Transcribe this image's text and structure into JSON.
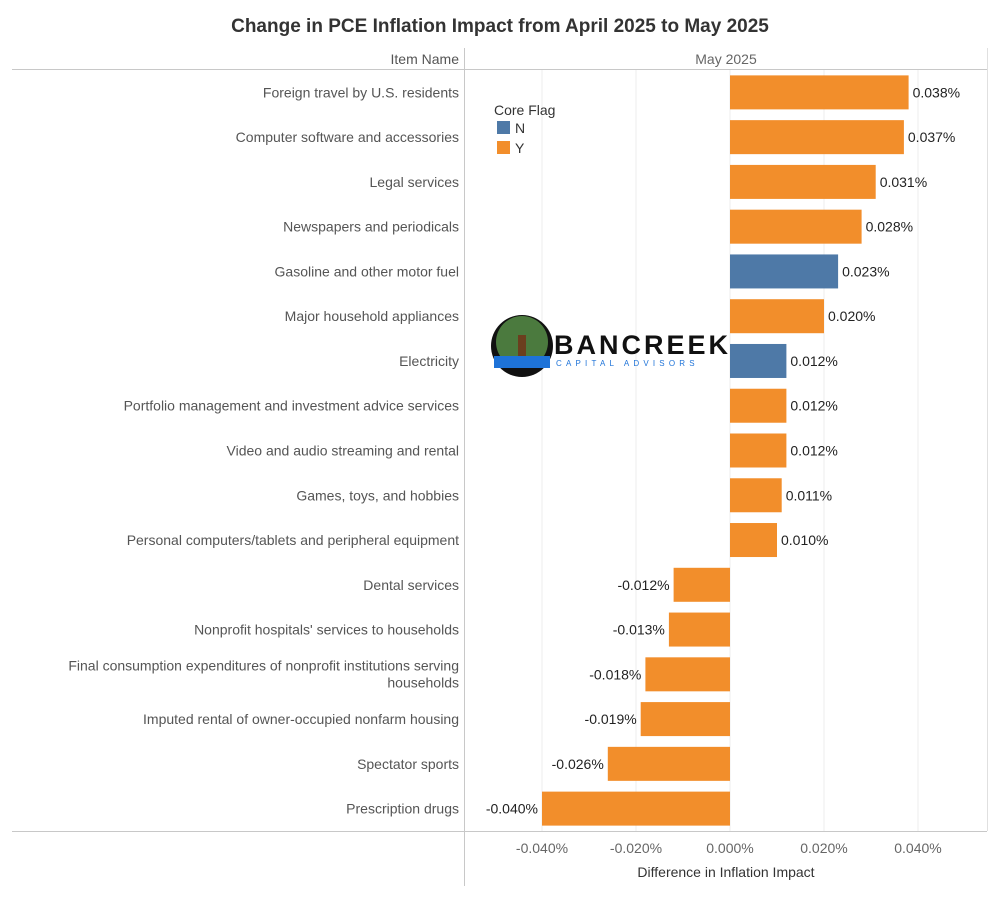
{
  "chart_data": {
    "type": "bar",
    "orientation": "horizontal",
    "title": "Change in PCE Inflation Impact from April 2025 to May 2025",
    "row_header": "Item Name",
    "column_header": "May 2025",
    "xlabel": "Difference in Inflation Impact",
    "xlim": [
      -0.05,
      0.055
    ],
    "xticks": [
      -0.04,
      -0.02,
      0.0,
      0.02,
      0.04
    ],
    "xtick_labels": [
      "-0.040%",
      "-0.020%",
      "0.000%",
      "0.020%",
      "0.040%"
    ],
    "grid": "vertical",
    "legend": {
      "title": "Core Flag",
      "placement": "top-left",
      "entries": [
        {
          "label": "N",
          "color": "#4e79a7"
        },
        {
          "label": "Y",
          "color": "#f28e2b"
        }
      ]
    },
    "categories": [
      "Foreign travel by U.S. residents",
      "Computer software and accessories",
      "Legal services",
      "Newspapers and periodicals",
      "Gasoline and other motor fuel",
      "Major household appliances",
      "Electricity",
      "Portfolio management and investment advice services",
      "Video and audio streaming and rental",
      "Games, toys, and hobbies",
      "Personal computers/tablets and peripheral equipment",
      "Dental services",
      "Nonprofit hospitals' services to households",
      "Final consumption expenditures of nonprofit institutions serving households",
      "Imputed rental of owner-occupied nonfarm housing",
      "Spectator sports",
      "Prescription drugs"
    ],
    "values": [
      0.038,
      0.037,
      0.031,
      0.028,
      0.023,
      0.02,
      0.012,
      0.012,
      0.012,
      0.011,
      0.01,
      -0.012,
      -0.013,
      -0.018,
      -0.019,
      -0.026,
      -0.04
    ],
    "labels": [
      "0.038%",
      "0.037%",
      "0.031%",
      "0.028%",
      "0.023%",
      "0.020%",
      "0.012%",
      "0.012%",
      "0.012%",
      "0.011%",
      "0.010%",
      "-0.012%",
      "-0.013%",
      "-0.018%",
      "-0.019%",
      "-0.026%",
      "-0.040%"
    ],
    "core_flag": [
      "Y",
      "Y",
      "Y",
      "Y",
      "N",
      "Y",
      "N",
      "Y",
      "Y",
      "Y",
      "Y",
      "Y",
      "Y",
      "Y",
      "Y",
      "Y",
      "Y"
    ]
  },
  "logo": {
    "name": "BANCREEK",
    "tagline": "CAPITAL ADVISORS"
  }
}
